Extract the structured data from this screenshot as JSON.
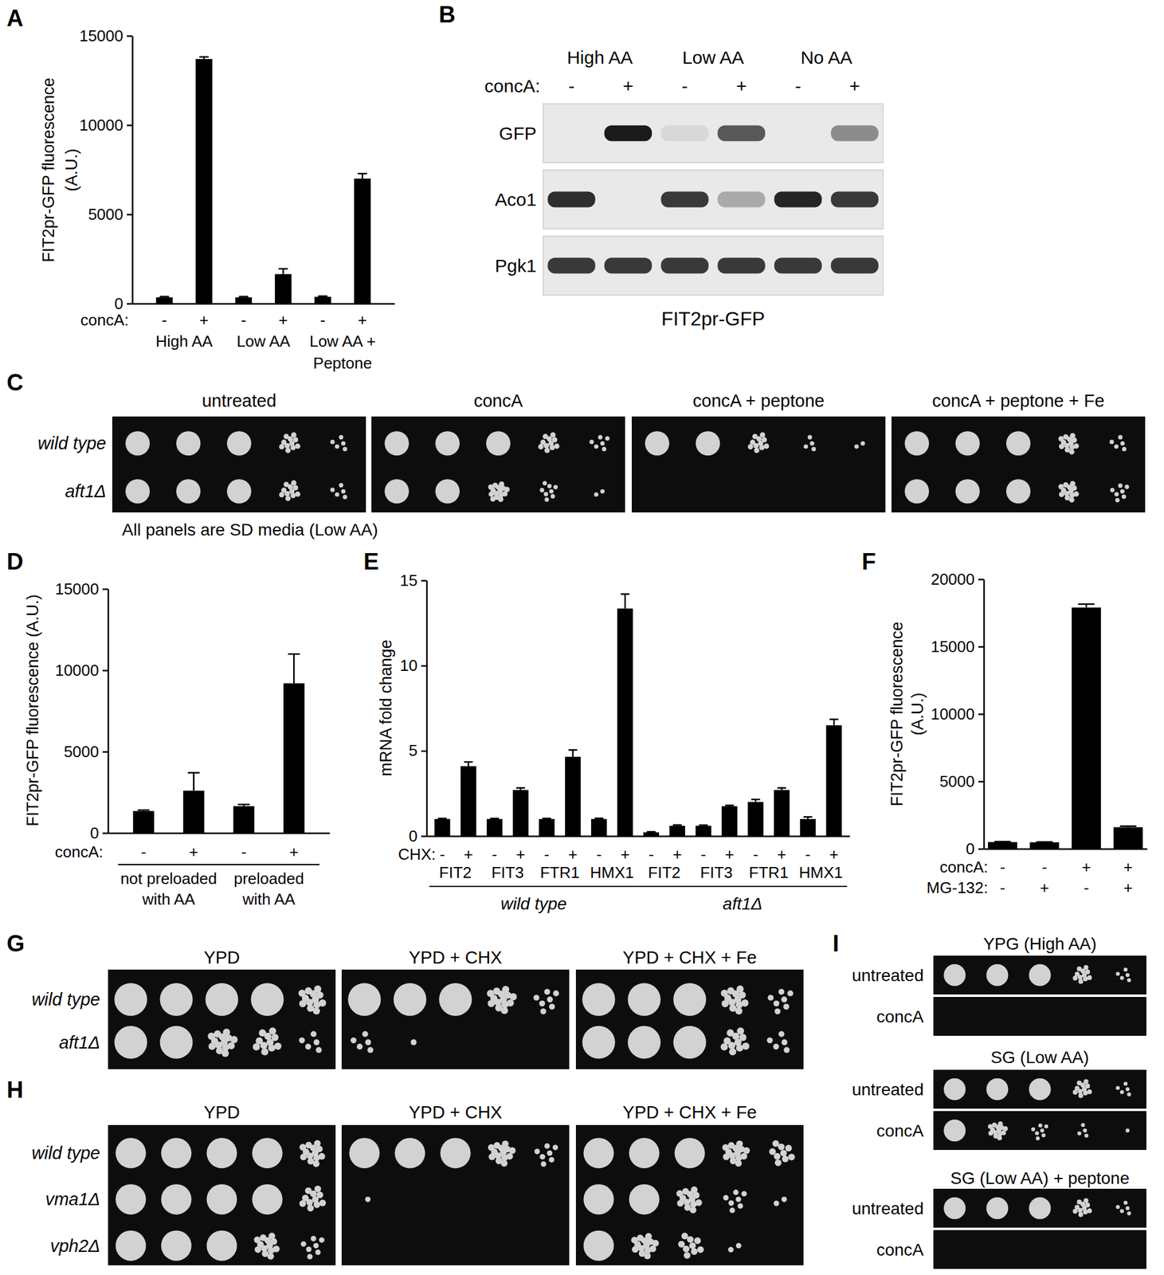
{
  "chart_data": [
    {
      "panel": "A",
      "type": "bar",
      "y_label": [
        "FIT2pr-GFP fluorescence",
        "(A.U.)"
      ],
      "ylim": [
        0,
        15000
      ],
      "yticks": [
        0,
        5000,
        10000,
        15000
      ],
      "x_label": "concA:",
      "categories": [
        "-",
        "+",
        "-",
        "+",
        "-",
        "+"
      ],
      "groups": [
        [
          "High AA"
        ],
        [
          "Low AA"
        ],
        [
          "Low AA +",
          "Peptone"
        ]
      ],
      "values": [
        350,
        13700,
        350,
        1650,
        380,
        7000
      ],
      "errors": [
        40,
        120,
        40,
        300,
        40,
        280
      ],
      "color": "#000000"
    },
    {
      "panel": "D",
      "type": "bar",
      "y_label": [
        "FIT2pr-GFP fluorescence (A.U.)"
      ],
      "ylim": [
        0,
        15000
      ],
      "yticks": [
        0,
        5000,
        10000,
        15000
      ],
      "x_label": "concA:",
      "categories": [
        "-",
        "+",
        "-",
        "+"
      ],
      "groups": [
        [
          "not preloaded",
          "with AA"
        ],
        [
          "preloaded",
          "with AA"
        ]
      ],
      "values": [
        1350,
        2600,
        1650,
        9200
      ],
      "errors": [
        60,
        1100,
        100,
        1800
      ],
      "color": "#000000"
    },
    {
      "panel": "E",
      "type": "bar",
      "y_label": [
        "mRNA fold change"
      ],
      "ylim": [
        0,
        15
      ],
      "yticks": [
        0,
        5,
        10,
        15
      ],
      "x_label": "CHX:",
      "categories": [
        "-",
        "+",
        "-",
        "+",
        "-",
        "+",
        "-",
        "+",
        "-",
        "+",
        "-",
        "+",
        "-",
        "+",
        "-",
        "+"
      ],
      "groups": [
        [
          "FIT2"
        ],
        [
          "FIT3"
        ],
        [
          "FTR1"
        ],
        [
          "HMX1"
        ],
        [
          "FIT2"
        ],
        [
          "FIT3"
        ],
        [
          "FTR1"
        ],
        [
          "HMX1"
        ]
      ],
      "supergroups": [
        "wild type",
        "aft1Δ"
      ],
      "values": [
        1,
        4.1,
        1,
        2.7,
        1,
        4.65,
        1,
        13.35,
        0.22,
        0.6,
        0.6,
        1.75,
        2.0,
        2.7,
        1.0,
        6.5
      ],
      "errors": [
        0.03,
        0.25,
        0.03,
        0.12,
        0.03,
        0.4,
        0.04,
        0.85,
        0.03,
        0.05,
        0.04,
        0.05,
        0.15,
        0.12,
        0.12,
        0.35
      ],
      "color": "#000000"
    },
    {
      "panel": "F",
      "type": "bar",
      "y_label": [
        "FIT2pr-GFP fluorescence",
        "(A.U.)"
      ],
      "ylim": [
        0,
        20000
      ],
      "yticks": [
        0,
        5000,
        10000,
        15000,
        20000
      ],
      "x_label": "concA:",
      "categories": [
        "-",
        "-",
        "+",
        "+"
      ],
      "x_label2": "MG-132:",
      "categories2": [
        "-",
        "+",
        "-",
        "+"
      ],
      "values": [
        500,
        480,
        17900,
        1600
      ],
      "errors": [
        30,
        30,
        250,
        80
      ],
      "color": "#000000"
    }
  ],
  "blot": {
    "panel": "B",
    "column_groups": [
      "High AA",
      "Low AA",
      "No AA"
    ],
    "x_label": "concA:",
    "lanes": [
      "-",
      "+",
      "-",
      "+",
      "-",
      "+"
    ],
    "rows": [
      {
        "label": "GFP",
        "intensity": [
          0,
          1,
          0.08,
          0.7,
          0,
          0.45
        ]
      },
      {
        "label": "Aco1",
        "intensity": [
          0.9,
          0,
          0.85,
          0.3,
          0.95,
          0.85
        ]
      },
      {
        "label": "Pgk1",
        "intensity": [
          0.85,
          0.85,
          0.85,
          0.85,
          0.85,
          0.85
        ]
      }
    ],
    "caption": "FIT2pr-GFP"
  },
  "spot_assays": [
    {
      "panel": "C",
      "row_labels": [
        "wild type",
        "aft1Δ"
      ],
      "columns": [
        {
          "title": "untreated",
          "growth": [
            [
              1,
              1,
              0.9,
              0.6,
              0.3
            ],
            [
              1,
              1,
              0.9,
              0.6,
              0.3
            ]
          ]
        },
        {
          "title": "concA",
          "growth": [
            [
              1,
              1,
              0.9,
              0.6,
              0.35
            ],
            [
              1,
              0.95,
              0.85,
              0.45,
              0.1
            ]
          ]
        },
        {
          "title": "concA + peptone",
          "growth": [
            [
              1,
              0.9,
              0.6,
              0.2,
              0.1
            ],
            [
              0,
              0,
              0,
              0,
              0
            ]
          ]
        },
        {
          "title": "concA + peptone + Fe",
          "growth": [
            [
              1,
              1,
              0.9,
              0.7,
              0.3
            ],
            [
              1,
              1,
              0.9,
              0.7,
              0.4
            ]
          ]
        }
      ],
      "caption": "All panels are SD media (Low AA)"
    },
    {
      "panel": "G",
      "row_labels": [
        "wild type",
        "aft1Δ"
      ],
      "columns": [
        {
          "title": "YPD",
          "growth": [
            [
              1,
              1,
              1,
              0.9,
              0.7
            ],
            [
              1,
              0.9,
              0.8,
              0.6,
              0.3
            ]
          ]
        },
        {
          "title": "YPD + CHX",
          "growth": [
            [
              1,
              1,
              1,
              0.8,
              0.4
            ],
            [
              0.3,
              0.05,
              0,
              0,
              0
            ]
          ]
        },
        {
          "title": "YPD + CHX + Fe",
          "growth": [
            [
              1,
              1,
              0.9,
              0.7,
              0.4
            ],
            [
              1,
              1,
              0.9,
              0.6,
              0.3
            ]
          ]
        }
      ]
    },
    {
      "panel": "H",
      "row_labels": [
        "wild type",
        "vma1Δ",
        "vph2Δ"
      ],
      "columns": [
        {
          "title": "YPD",
          "growth": [
            [
              1,
              1,
              1,
              0.9,
              0.7
            ],
            [
              1,
              1,
              1,
              0.9,
              0.6
            ],
            [
              1,
              1,
              0.9,
              0.7,
              0.4
            ]
          ]
        },
        {
          "title": "YPD + CHX",
          "growth": [
            [
              1,
              1,
              1,
              0.8,
              0.4
            ],
            [
              0.05,
              0,
              0,
              0,
              0
            ],
            [
              0,
              0,
              0,
              0,
              0
            ]
          ]
        },
        {
          "title": "YPD + CHX + Fe",
          "growth": [
            [
              1,
              1,
              0.9,
              0.8,
              0.5
            ],
            [
              0.95,
              0.9,
              0.7,
              0.4,
              0.1
            ],
            [
              0.9,
              0.8,
              0.5,
              0.1,
              0
            ]
          ]
        }
      ]
    },
    {
      "panel": "I",
      "sections": [
        {
          "title": "YPG (High AA)",
          "row_labels": [
            "untreated",
            "concA"
          ],
          "growth": [
            [
              1,
              1,
              0.9,
              0.6,
              0.3
            ],
            [
              0,
              0,
              0,
              0,
              0
            ]
          ]
        },
        {
          "title": "SG (Low AA)",
          "row_labels": [
            "untreated",
            "concA"
          ],
          "growth": [
            [
              1,
              1,
              0.9,
              0.6,
              0.3
            ],
            [
              1,
              0.8,
              0.4,
              0.2,
              0.05
            ]
          ]
        },
        {
          "title": "SG (Low AA) + peptone",
          "row_labels": [
            "untreated",
            "concA"
          ],
          "growth": [
            [
              1,
              1,
              0.9,
              0.6,
              0.3
            ],
            [
              0,
              0,
              0,
              0,
              0
            ]
          ]
        }
      ]
    }
  ]
}
